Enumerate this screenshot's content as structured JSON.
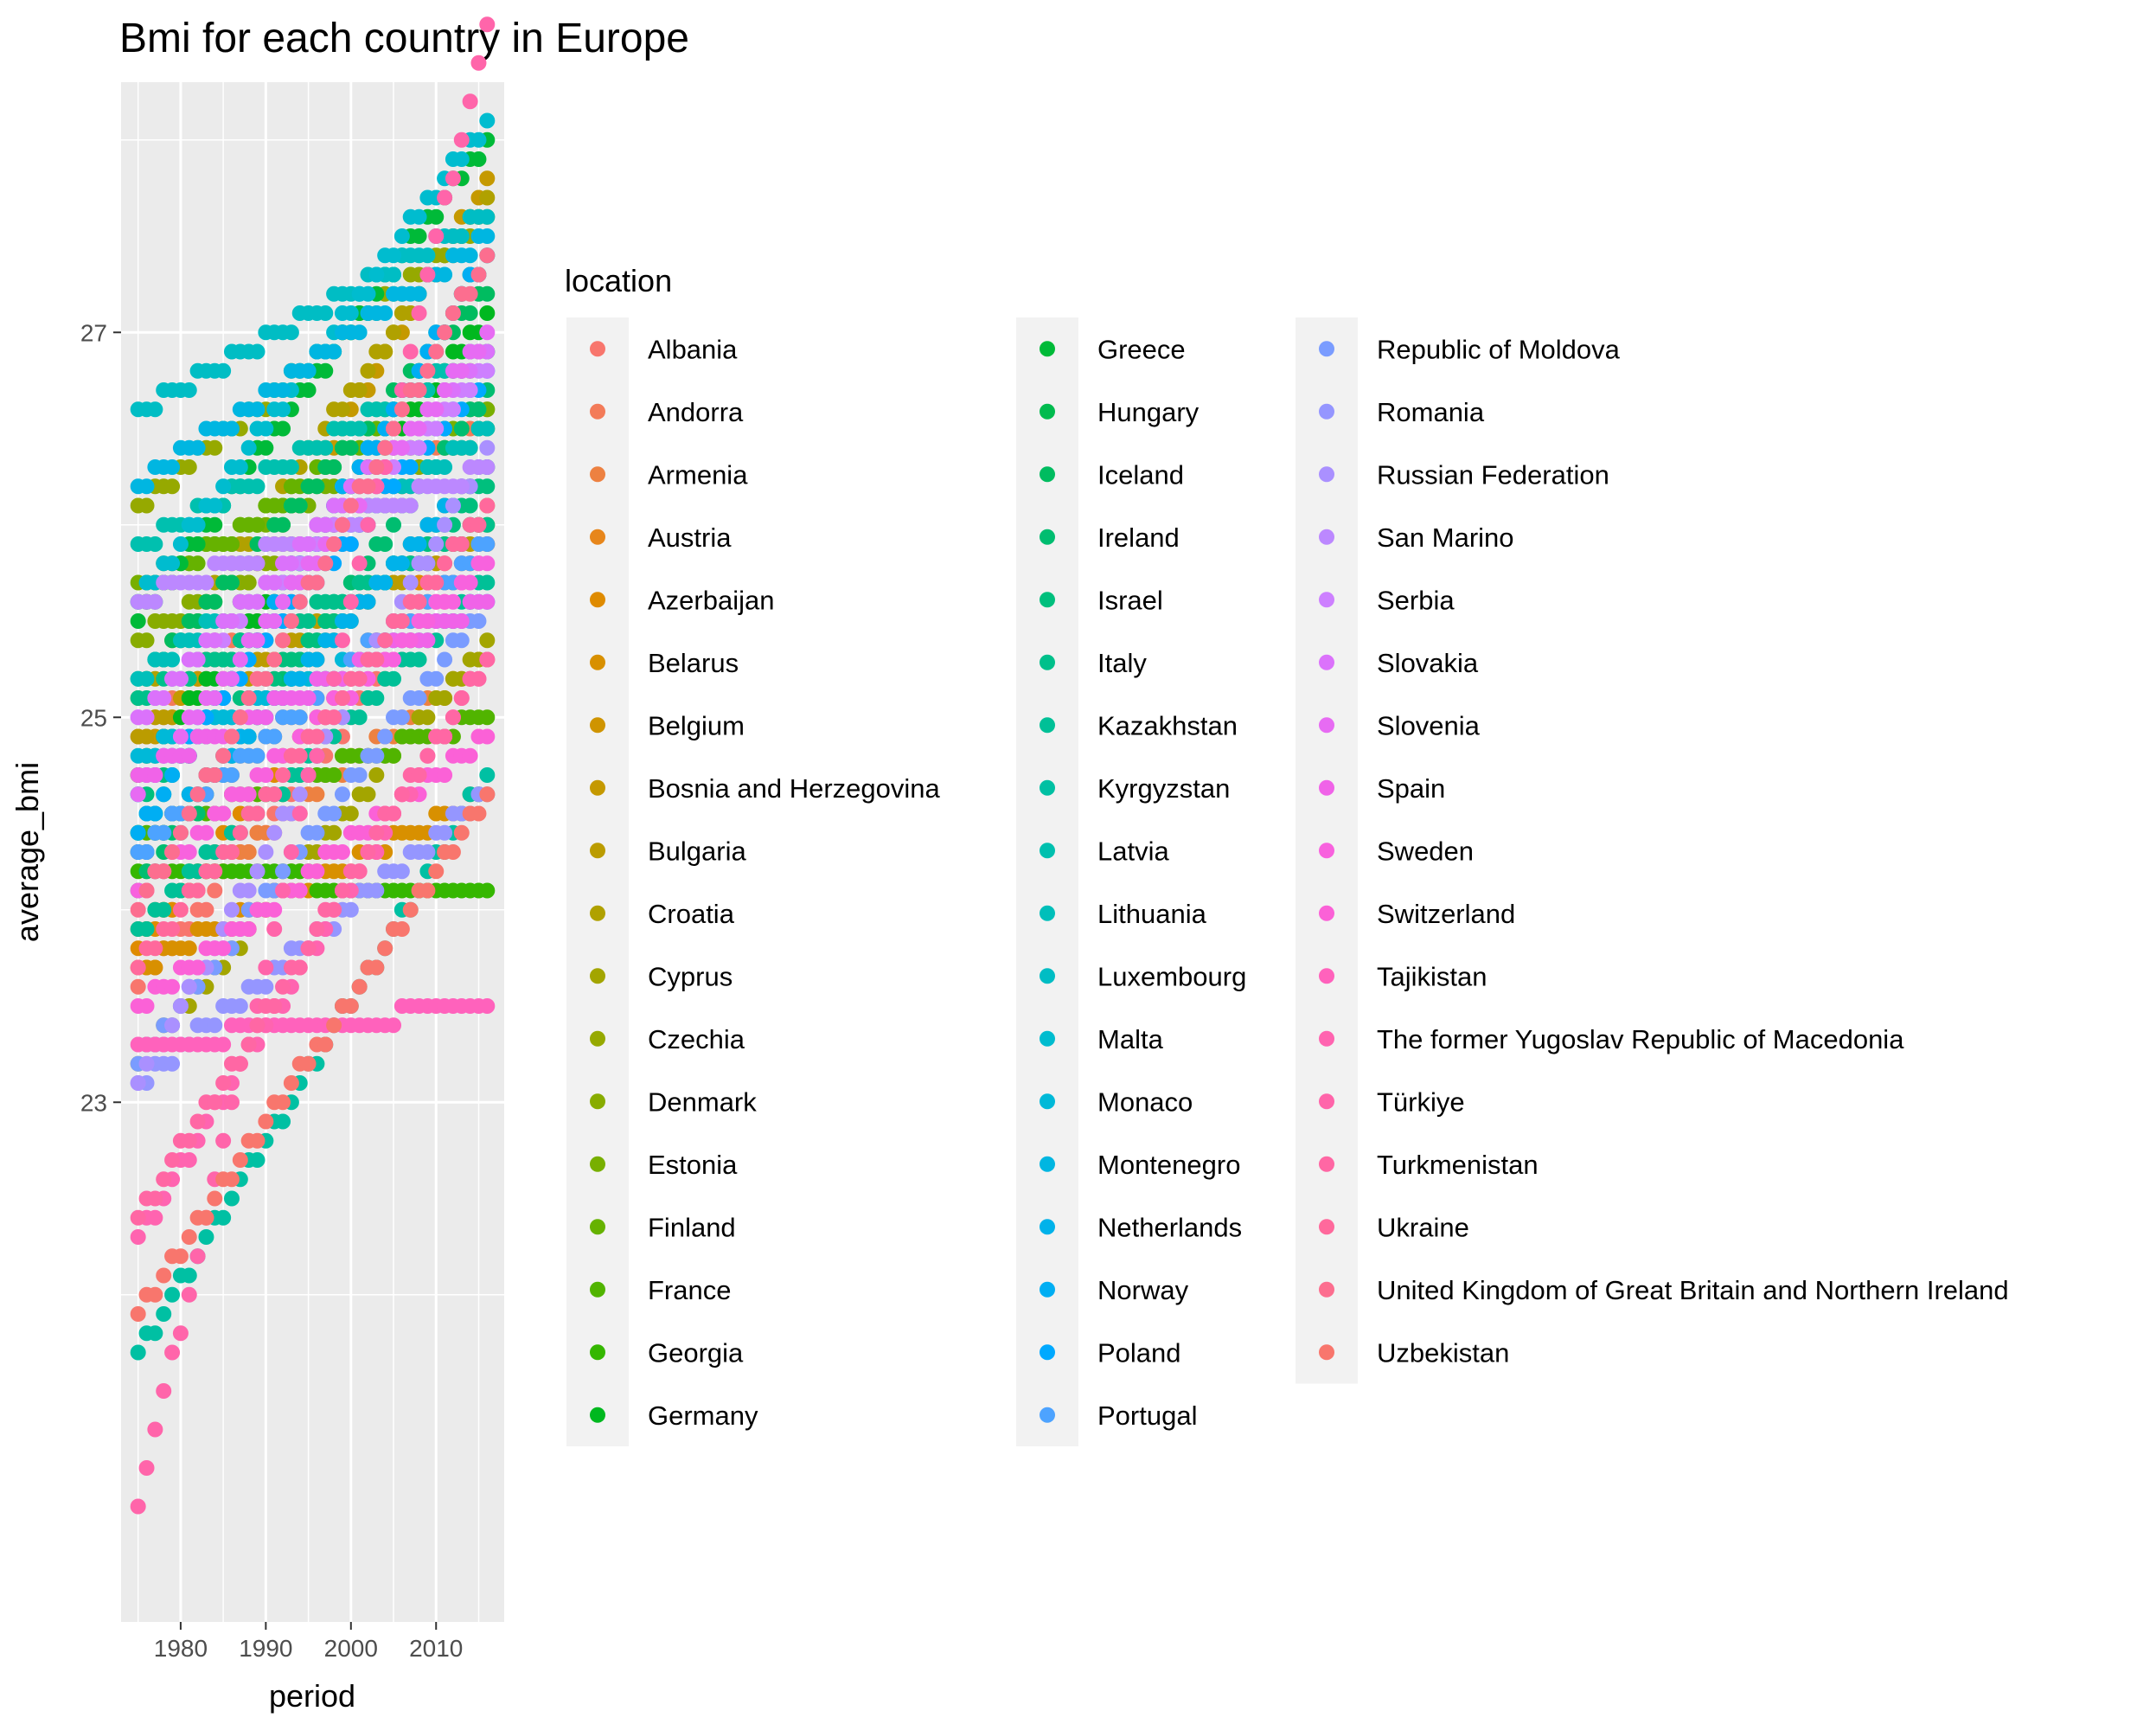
{
  "chart_data": {
    "type": "scatter",
    "title": "Bmi for each country in Europe",
    "xlabel": "period",
    "ylabel": "average_bmi",
    "xlim": [
      1973,
      2018
    ],
    "ylim": [
      20.3,
      28.3
    ],
    "x_ticks": [
      1980,
      1990,
      2000,
      2010
    ],
    "y_ticks": [
      23,
      25,
      27
    ],
    "grid": true,
    "legend_title": "location",
    "legend_position": "right",
    "x": [
      1975,
      1976,
      1977,
      1978,
      1979,
      1980,
      1981,
      1982,
      1983,
      1984,
      1985,
      1986,
      1987,
      1988,
      1989,
      1990,
      1991,
      1992,
      1993,
      1994,
      1995,
      1996,
      1997,
      1998,
      1999,
      2000,
      2001,
      2002,
      2003,
      2004,
      2005,
      2006,
      2007,
      2008,
      2009,
      2010,
      2011,
      2012,
      2013,
      2014,
      2015,
      2016
    ],
    "series": [
      {
        "name": "Albania",
        "color": "#F8766D",
        "start": 23.6,
        "end": 25.9
      },
      {
        "name": "Andorra",
        "color": "#F37B59",
        "start": 24.9,
        "end": 26.6
      },
      {
        "name": "Armenia",
        "color": "#ED8141",
        "start": 23.9,
        "end": 25.3
      },
      {
        "name": "Austria",
        "color": "#E7861B",
        "start": 24.3,
        "end": 25.9
      },
      {
        "name": "Azerbaijan",
        "color": "#DF8B00",
        "start": 23.8,
        "end": 26.1
      },
      {
        "name": "Belarus",
        "color": "#D89000",
        "start": 23.7,
        "end": 24.6
      },
      {
        "name": "Belgium",
        "color": "#CF9400",
        "start": 24.3,
        "end": 26.3
      },
      {
        "name": "Bosnia and Herzegovina",
        "color": "#C59900",
        "start": 24.7,
        "end": 27.8
      },
      {
        "name": "Bulgaria",
        "color": "#BB9C00",
        "start": 24.9,
        "end": 26.0
      },
      {
        "name": "Croatia",
        "color": "#B0A100",
        "start": 25.1,
        "end": 27.7
      },
      {
        "name": "Cyprus",
        "color": "#A3A500",
        "start": 23.2,
        "end": 25.4
      },
      {
        "name": "Czechia",
        "color": "#96A900",
        "start": 26.1,
        "end": 27.6
      },
      {
        "name": "Denmark",
        "color": "#88AC00",
        "start": 25.4,
        "end": 26.5
      },
      {
        "name": "Estonia",
        "color": "#78AF00",
        "start": 25.7,
        "end": 26.6
      },
      {
        "name": "Finland",
        "color": "#66B200",
        "start": 25.6,
        "end": 26.9
      },
      {
        "name": "France",
        "color": "#51B400",
        "start": 24.4,
        "end": 25.0
      },
      {
        "name": "Georgia",
        "color": "#35B700",
        "start": 24.2,
        "end": 24.1
      },
      {
        "name": "Germany",
        "color": "#00B81F",
        "start": 24.7,
        "end": 27.1
      },
      {
        "name": "Greece",
        "color": "#00BA38",
        "start": 25.5,
        "end": 28.0
      },
      {
        "name": "Hungary",
        "color": "#00BB4E",
        "start": 24.4,
        "end": 27.4
      },
      {
        "name": "Iceland",
        "color": "#00BC60",
        "start": 25.2,
        "end": 27.2
      },
      {
        "name": "Ireland",
        "color": "#00BD70",
        "start": 24.1,
        "end": 26.7
      },
      {
        "name": "Israel",
        "color": "#00BF7D",
        "start": 24.6,
        "end": 26.2
      },
      {
        "name": "Italy",
        "color": "#00C08B",
        "start": 25.1,
        "end": 26.0
      },
      {
        "name": "Kazakhstan",
        "color": "#00C097",
        "start": 23.9,
        "end": 25.7
      },
      {
        "name": "Kyrgyzstan",
        "color": "#00C0A3",
        "start": 21.7,
        "end": 24.7
      },
      {
        "name": "Latvia",
        "color": "#00C0AF",
        "start": 25.9,
        "end": 26.9
      },
      {
        "name": "Lithuania",
        "color": "#00BFBA",
        "start": 25.2,
        "end": 26.5
      },
      {
        "name": "Luxembourg",
        "color": "#00BDC4",
        "start": 26.6,
        "end": 27.6
      },
      {
        "name": "Malta",
        "color": "#00BCCF",
        "start": 25.6,
        "end": 28.1
      },
      {
        "name": "Monaco",
        "color": "#00B9D8",
        "start": 24.8,
        "end": 25.6
      },
      {
        "name": "Montenegro",
        "color": "#00B6E1",
        "start": 26.2,
        "end": 27.5
      },
      {
        "name": "Netherlands",
        "color": "#00B2EA",
        "start": 24.3,
        "end": 26.3
      },
      {
        "name": "Norway",
        "color": "#00AEF3",
        "start": 24.4,
        "end": 27.4
      },
      {
        "name": "Poland",
        "color": "#00A9FF",
        "start": 24.6,
        "end": 26.8
      },
      {
        "name": "Portugal",
        "color": "#4DA3FF",
        "start": 24.3,
        "end": 25.9
      },
      {
        "name": "Republic of Moldova",
        "color": "#7A9CFF",
        "start": 23.2,
        "end": 25.6
      },
      {
        "name": "Romania",
        "color": "#9596FF",
        "start": 23.1,
        "end": 24.6
      },
      {
        "name": "Russian Federation",
        "color": "#AA90FF",
        "start": 23.1,
        "end": 26.4
      },
      {
        "name": "San Marino",
        "color": "#BC88FF",
        "start": 25.6,
        "end": 26.3
      },
      {
        "name": "Serbia",
        "color": "#CD80FF",
        "start": 25.0,
        "end": 26.8
      },
      {
        "name": "Slovakia",
        "color": "#DB72FB",
        "start": 25.0,
        "end": 26.9
      },
      {
        "name": "Slovenia",
        "color": "#E76BF3",
        "start": 24.6,
        "end": 27.0
      },
      {
        "name": "Spain",
        "color": "#F063E8",
        "start": 24.7,
        "end": 25.6
      },
      {
        "name": "Sweden",
        "color": "#F862DE",
        "start": 24.1,
        "end": 25.8
      },
      {
        "name": "Switzerland",
        "color": "#FB61D7",
        "start": 23.5,
        "end": 24.9
      },
      {
        "name": "Tajikistan",
        "color": "#FF62BC",
        "start": 23.3,
        "end": 23.5
      },
      {
        "name": "The former Yugoslav Republic of Macedonia",
        "color": "#FF64B0",
        "start": 22.3,
        "end": 25.3
      },
      {
        "name": "Türkiye",
        "color": "#FF65AA",
        "start": 20.9,
        "end": 28.6
      },
      {
        "name": "Turkmenistan",
        "color": "#FF67A4",
        "start": 22.4,
        "end": 25.3
      },
      {
        "name": "Ukraine",
        "color": "#FF699C",
        "start": 23.7,
        "end": 26.1
      },
      {
        "name": "United Kingdom of Great Britain and Northern Ireland",
        "color": "#FC6E8F",
        "start": 24.0,
        "end": 27.4
      },
      {
        "name": "Uzbekistan",
        "color": "#F8766D",
        "start": 21.9,
        "end": 24.6
      }
    ]
  }
}
